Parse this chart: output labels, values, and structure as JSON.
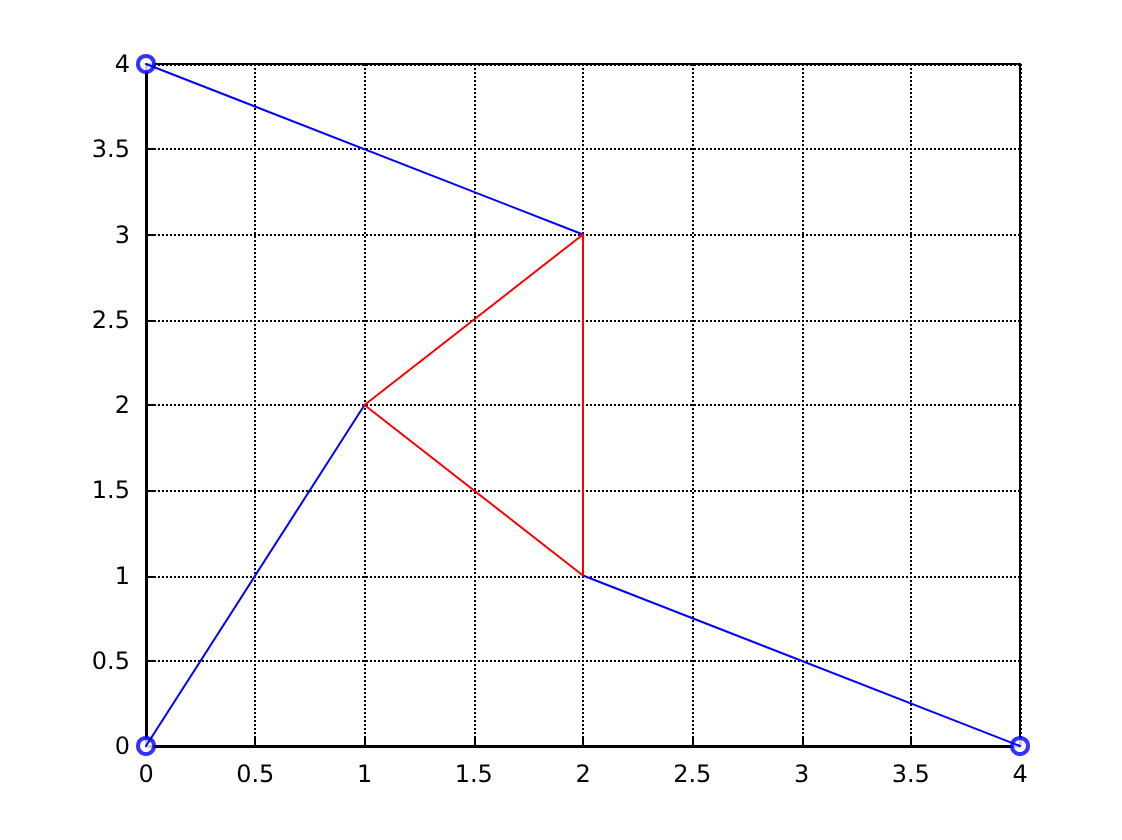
{
  "chart_data": {
    "type": "line",
    "xlim": [
      0,
      4
    ],
    "xticks": [
      0,
      0.5,
      1,
      1.5,
      2,
      2.5,
      3,
      3.5,
      4
    ],
    "ylim": [
      0,
      4
    ],
    "yticks": [
      0,
      0.5,
      1,
      1.5,
      2,
      2.5,
      3,
      3.5,
      4
    ],
    "grid": true,
    "line_style": "solid",
    "series": [
      {
        "color": "#0000ff",
        "x": [
          0,
          2
        ],
        "values": [
          4,
          3
        ],
        "marker": "none"
      },
      {
        "color": "#0000ff",
        "x": [
          0,
          1
        ],
        "values": [
          0,
          2
        ],
        "marker": "none"
      },
      {
        "color": "#0000ff",
        "x": [
          2,
          4
        ],
        "values": [
          1,
          0
        ],
        "marker": "none"
      },
      {
        "color": "#ff0000",
        "x": [
          1,
          2
        ],
        "values": [
          2,
          3
        ],
        "marker": "none"
      },
      {
        "color": "#ff0000",
        "x": [
          2,
          2
        ],
        "values": [
          1,
          3
        ],
        "marker": "none"
      },
      {
        "color": "#ff0000",
        "x": [
          1,
          2
        ],
        "values": [
          2,
          1
        ],
        "marker": "none"
      },
      {
        "type": "scatter",
        "color": "#0000ff",
        "x": [
          0,
          0,
          4
        ],
        "values": [
          4,
          0,
          0
        ],
        "marker": "circle"
      }
    ]
  }
}
